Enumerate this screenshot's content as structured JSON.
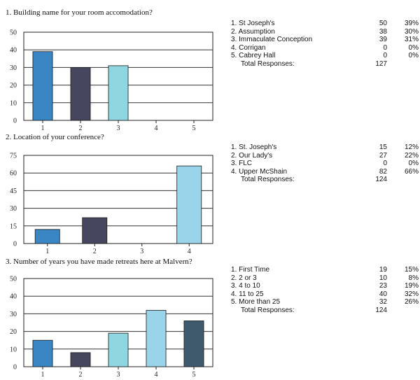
{
  "questions": [
    {
      "title": "1. Building name for your room accomodation?",
      "responses": [
        {
          "label": "1. St Joseph's",
          "count": "50",
          "percent": "39%"
        },
        {
          "label": "2. Assumption",
          "count": "38",
          "percent": "30%"
        },
        {
          "label": "3. Immaculate Conception",
          "count": "39",
          "percent": "31%"
        },
        {
          "label": "4. Corrigan",
          "count": "0",
          "percent": "0%"
        },
        {
          "label": "5. Cabrey Hall",
          "count": "0",
          "percent": "0%"
        }
      ],
      "total_label": "Total Responses:",
      "total": "127"
    },
    {
      "title": "2. Location of your conference?",
      "responses": [
        {
          "label": "1. St. Joseph's",
          "count": "15",
          "percent": "12%"
        },
        {
          "label": "2. Our Lady's",
          "count": "27",
          "percent": "22%"
        },
        {
          "label": "3. FLC",
          "count": "0",
          "percent": "0%"
        },
        {
          "label": "4. Upper McShain",
          "count": "82",
          "percent": "66%"
        }
      ],
      "total_label": "Total Responses:",
      "total": "124"
    },
    {
      "title": "3. Number of years you have made retreats here at Malvern?",
      "responses": [
        {
          "label": "1. First Time",
          "count": "19",
          "percent": "15%"
        },
        {
          "label": "2. 2 or 3",
          "count": "10",
          "percent": "8%"
        },
        {
          "label": "3. 4 to 10",
          "count": "23",
          "percent": "19%"
        },
        {
          "label": "4. 11 to 25",
          "count": "40",
          "percent": "32%"
        },
        {
          "label": "5. More than 25",
          "count": "32",
          "percent": "26%"
        }
      ],
      "total_label": "Total Responses:",
      "total": "124"
    }
  ],
  "chart_data": [
    {
      "type": "bar",
      "categories": [
        "1",
        "2",
        "3",
        "4",
        "5"
      ],
      "values": [
        39,
        30,
        31,
        0,
        0
      ],
      "yticks": [
        0,
        10,
        20,
        30,
        40,
        50
      ],
      "ylim": [
        0,
        50
      ],
      "grid": true,
      "colors": [
        "#3a86c4",
        "#46465e",
        "#8fd6e0",
        "#9ad4ea",
        "#3f5a6c"
      ]
    },
    {
      "type": "bar",
      "categories": [
        "1",
        "2",
        "3",
        "4"
      ],
      "values": [
        12,
        22,
        0,
        66
      ],
      "yticks": [
        0,
        15,
        30,
        45,
        60,
        75
      ],
      "ylim": [
        0,
        75
      ],
      "grid": true,
      "colors": [
        "#3a86c4",
        "#46465e",
        "#8fd6e0",
        "#9ad4ea"
      ]
    },
    {
      "type": "bar",
      "categories": [
        "1",
        "2",
        "3",
        "4",
        "5"
      ],
      "values": [
        15,
        8,
        19,
        32,
        26
      ],
      "yticks": [
        0,
        10,
        20,
        30,
        40,
        50
      ],
      "ylim": [
        0,
        50
      ],
      "grid": true,
      "colors": [
        "#3a86c4",
        "#46465e",
        "#8fd6e0",
        "#9ad4ea",
        "#3f5a6c"
      ]
    }
  ]
}
